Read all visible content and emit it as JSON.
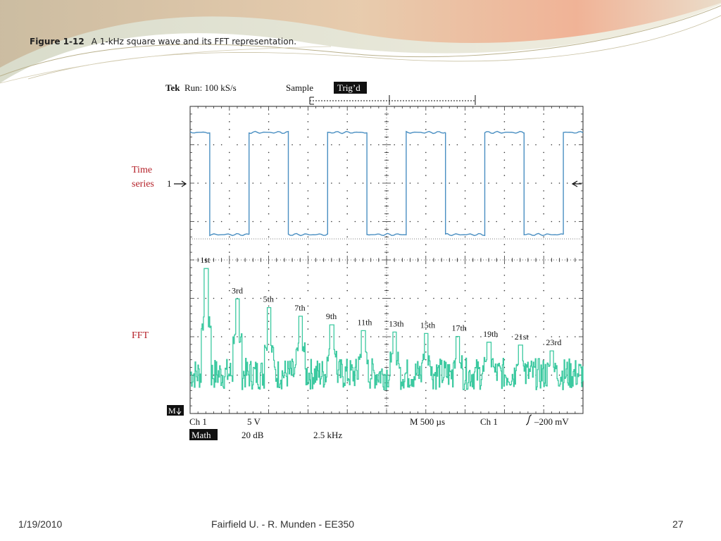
{
  "slide": {
    "figure_label": "Figure 1-12",
    "caption": "A 1-kHz square wave and its FFT representation.",
    "footer_date": "1/19/2010",
    "footer_center": "Fairfield U. -  R. Munden - EE350",
    "page_number": "27"
  },
  "scope": {
    "brand": "Tek",
    "run_label": "Run: 100 kS/s",
    "mode": "Sample",
    "trig_status": "Trig’d",
    "time_series_label_line1": "Time",
    "time_series_label_line2": "series",
    "fft_label": "FFT",
    "ch1_marker": "1",
    "math_marker": "M",
    "readout": {
      "ch1_label": "Ch 1",
      "ch1_scale": "5 V",
      "timebase": "M 500 µs",
      "trig_source": "Ch 1",
      "trig_level": "–200 mV",
      "math_label": "Math",
      "math_scale": "20 dB",
      "math_freq": "2.5 kHz"
    },
    "colors": {
      "time_trace": "#4a8fc2",
      "fft_trace": "#3cc9a0",
      "label_red": "#b5222a",
      "grid": "#333333",
      "text": "#111111"
    }
  },
  "chart_data": [
    {
      "type": "line",
      "name": "time-series",
      "x_unit": "ms",
      "divisions_x": 10,
      "divisions_y": 8,
      "x_range": [
        0,
        5
      ],
      "x": [
        0,
        0.25,
        0.25,
        0.75,
        0.75,
        1.25,
        1.25,
        1.75,
        1.75,
        2.25,
        2.25,
        2.75,
        2.75,
        3.25,
        3.25,
        3.75,
        3.75,
        4.25,
        4.25,
        4.75,
        4.75,
        5.0
      ],
      "y": [
        1,
        1,
        -1,
        -1,
        1,
        1,
        -1,
        -1,
        1,
        1,
        -1,
        -1,
        1,
        1,
        -1,
        -1,
        1,
        1,
        -1,
        -1,
        1,
        1
      ]
    },
    {
      "type": "line",
      "name": "fft",
      "x_unit": "kHz",
      "x_range": [
        0,
        25
      ],
      "harmonics": [
        {
          "label": "1st",
          "f": 1,
          "level": 0.96
        },
        {
          "label": "3rd",
          "f": 3,
          "level": 0.75
        },
        {
          "label": "5th",
          "f": 5,
          "level": 0.69
        },
        {
          "label": "7th",
          "f": 7,
          "level": 0.63
        },
        {
          "label": "9th",
          "f": 9,
          "level": 0.57
        },
        {
          "label": "11th",
          "f": 11,
          "level": 0.53
        },
        {
          "label": "13th",
          "f": 13,
          "level": 0.52
        },
        {
          "label": "15th",
          "f": 15,
          "level": 0.51
        },
        {
          "label": "17th",
          "f": 17,
          "level": 0.49
        },
        {
          "label": "19th",
          "f": 19,
          "level": 0.45
        },
        {
          "label": "21st",
          "f": 21,
          "level": 0.43
        },
        {
          "label": "23rd",
          "f": 23,
          "level": 0.39
        }
      ],
      "noise_floor": 0.12
    }
  ]
}
